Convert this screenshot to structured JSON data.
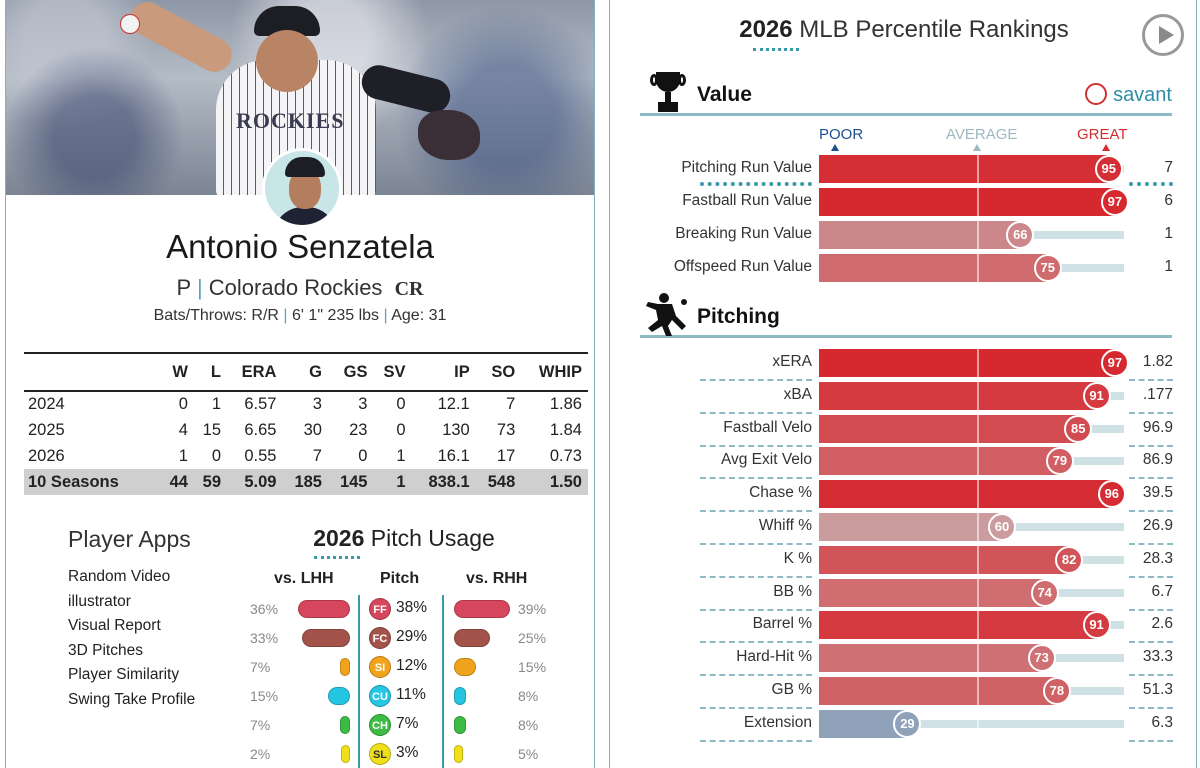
{
  "player": {
    "name": "Antonio Senzatela",
    "position": "P",
    "team": "Colorado Rockies",
    "team_logo_text": "CR",
    "bats_throws": "Bats/Throws: R/R",
    "height_weight": "6' 1\" 235 lbs",
    "age": "Age: 31",
    "jersey_text": "ROCKIES"
  },
  "stats": {
    "headers": [
      "",
      "W",
      "L",
      "ERA",
      "G",
      "GS",
      "SV",
      "IP",
      "SO",
      "WHIP"
    ],
    "rows": [
      [
        "2024",
        "0",
        "1",
        "6.57",
        "3",
        "3",
        "0",
        "12.1",
        "7",
        "1.86"
      ],
      [
        "2025",
        "4",
        "15",
        "6.65",
        "30",
        "23",
        "0",
        "130",
        "73",
        "1.84"
      ],
      [
        "2026",
        "1",
        "0",
        "0.55",
        "7",
        "0",
        "1",
        "16.1",
        "17",
        "0.73"
      ]
    ],
    "total": [
      "10 Seasons",
      "44",
      "59",
      "5.09",
      "185",
      "145",
      "1",
      "838.1",
      "548",
      "1.50"
    ]
  },
  "apps": {
    "title": "Player Apps",
    "items": [
      "Random Video",
      "illustrator",
      "Visual Report",
      "3D Pitches",
      "Player Similarity",
      "Swing Take Profile"
    ]
  },
  "usage": {
    "year": "2026",
    "title": "Pitch Usage",
    "col_lhh": "vs. LHH",
    "col_pitch": "Pitch",
    "col_rhh": "vs. RHH",
    "pitches": [
      {
        "code": "FF",
        "lhh": "36%",
        "lhh_val": 36,
        "overall": "38%",
        "rhh": "39%",
        "rhh_val": 39,
        "color": "#d6475d",
        "text_color": "#ffffff"
      },
      {
        "code": "FC",
        "lhh": "33%",
        "lhh_val": 33,
        "overall": "29%",
        "rhh": "25%",
        "rhh_val": 25,
        "color": "#a4534b",
        "text_color": "#ffffff"
      },
      {
        "code": "SI",
        "lhh": "7%",
        "lhh_val": 7,
        "overall": "12%",
        "rhh": "15%",
        "rhh_val": 15,
        "color": "#f2a31c",
        "text_color": "#ffffff"
      },
      {
        "code": "CU",
        "lhh": "15%",
        "lhh_val": 15,
        "overall": "11%",
        "rhh": "8%",
        "rhh_val": 8,
        "color": "#25c6e4",
        "text_color": "#ffffff"
      },
      {
        "code": "CH",
        "lhh": "7%",
        "lhh_val": 7,
        "overall": "7%",
        "rhh": "8%",
        "rhh_val": 8,
        "color": "#3dbb45",
        "text_color": "#ffffff"
      },
      {
        "code": "SL",
        "lhh": "2%",
        "lhh_val": 2,
        "overall": "3%",
        "rhh": "5%",
        "rhh_val": 5,
        "color": "#f0e01a",
        "text_color": "#333333"
      }
    ]
  },
  "rankings": {
    "year": "2026",
    "title": "MLB Percentile Rankings",
    "brand": "savant",
    "scale": {
      "poor": "POOR",
      "average": "AVERAGE",
      "great": "GREAT",
      "poor_color": "#1d4f8f",
      "average_color": "#9cb9c2",
      "great_color": "#d22e2e"
    },
    "sections": [
      {
        "name": "Value",
        "icon": "trophy-icon",
        "metrics": [
          {
            "label": "Pitching Run Value",
            "percentile": 95,
            "value": "7"
          },
          {
            "label": "Fastball Run Value",
            "percentile": 97,
            "value": "6"
          },
          {
            "label": "Breaking Run Value",
            "percentile": 66,
            "value": "1"
          },
          {
            "label": "Offspeed Run Value",
            "percentile": 75,
            "value": "1"
          }
        ]
      },
      {
        "name": "Pitching",
        "icon": "pitcher-icon",
        "metrics": [
          {
            "label": "xERA",
            "percentile": 97,
            "value": "1.82"
          },
          {
            "label": "xBA",
            "percentile": 91,
            "value": ".177"
          },
          {
            "label": "Fastball Velo",
            "percentile": 85,
            "value": "96.9"
          },
          {
            "label": "Avg Exit Velo",
            "percentile": 79,
            "value": "86.9"
          },
          {
            "label": "Chase %",
            "percentile": 96,
            "value": "39.5"
          },
          {
            "label": "Whiff %",
            "percentile": 60,
            "value": "26.9"
          },
          {
            "label": "K %",
            "percentile": 82,
            "value": "28.3"
          },
          {
            "label": "BB %",
            "percentile": 74,
            "value": "6.7"
          },
          {
            "label": "Barrel %",
            "percentile": 91,
            "value": "2.6"
          },
          {
            "label": "Hard-Hit %",
            "percentile": 73,
            "value": "33.3"
          },
          {
            "label": "GB %",
            "percentile": 78,
            "value": "51.3"
          },
          {
            "label": "Extension",
            "percentile": 29,
            "value": "6.3"
          }
        ]
      }
    ]
  }
}
